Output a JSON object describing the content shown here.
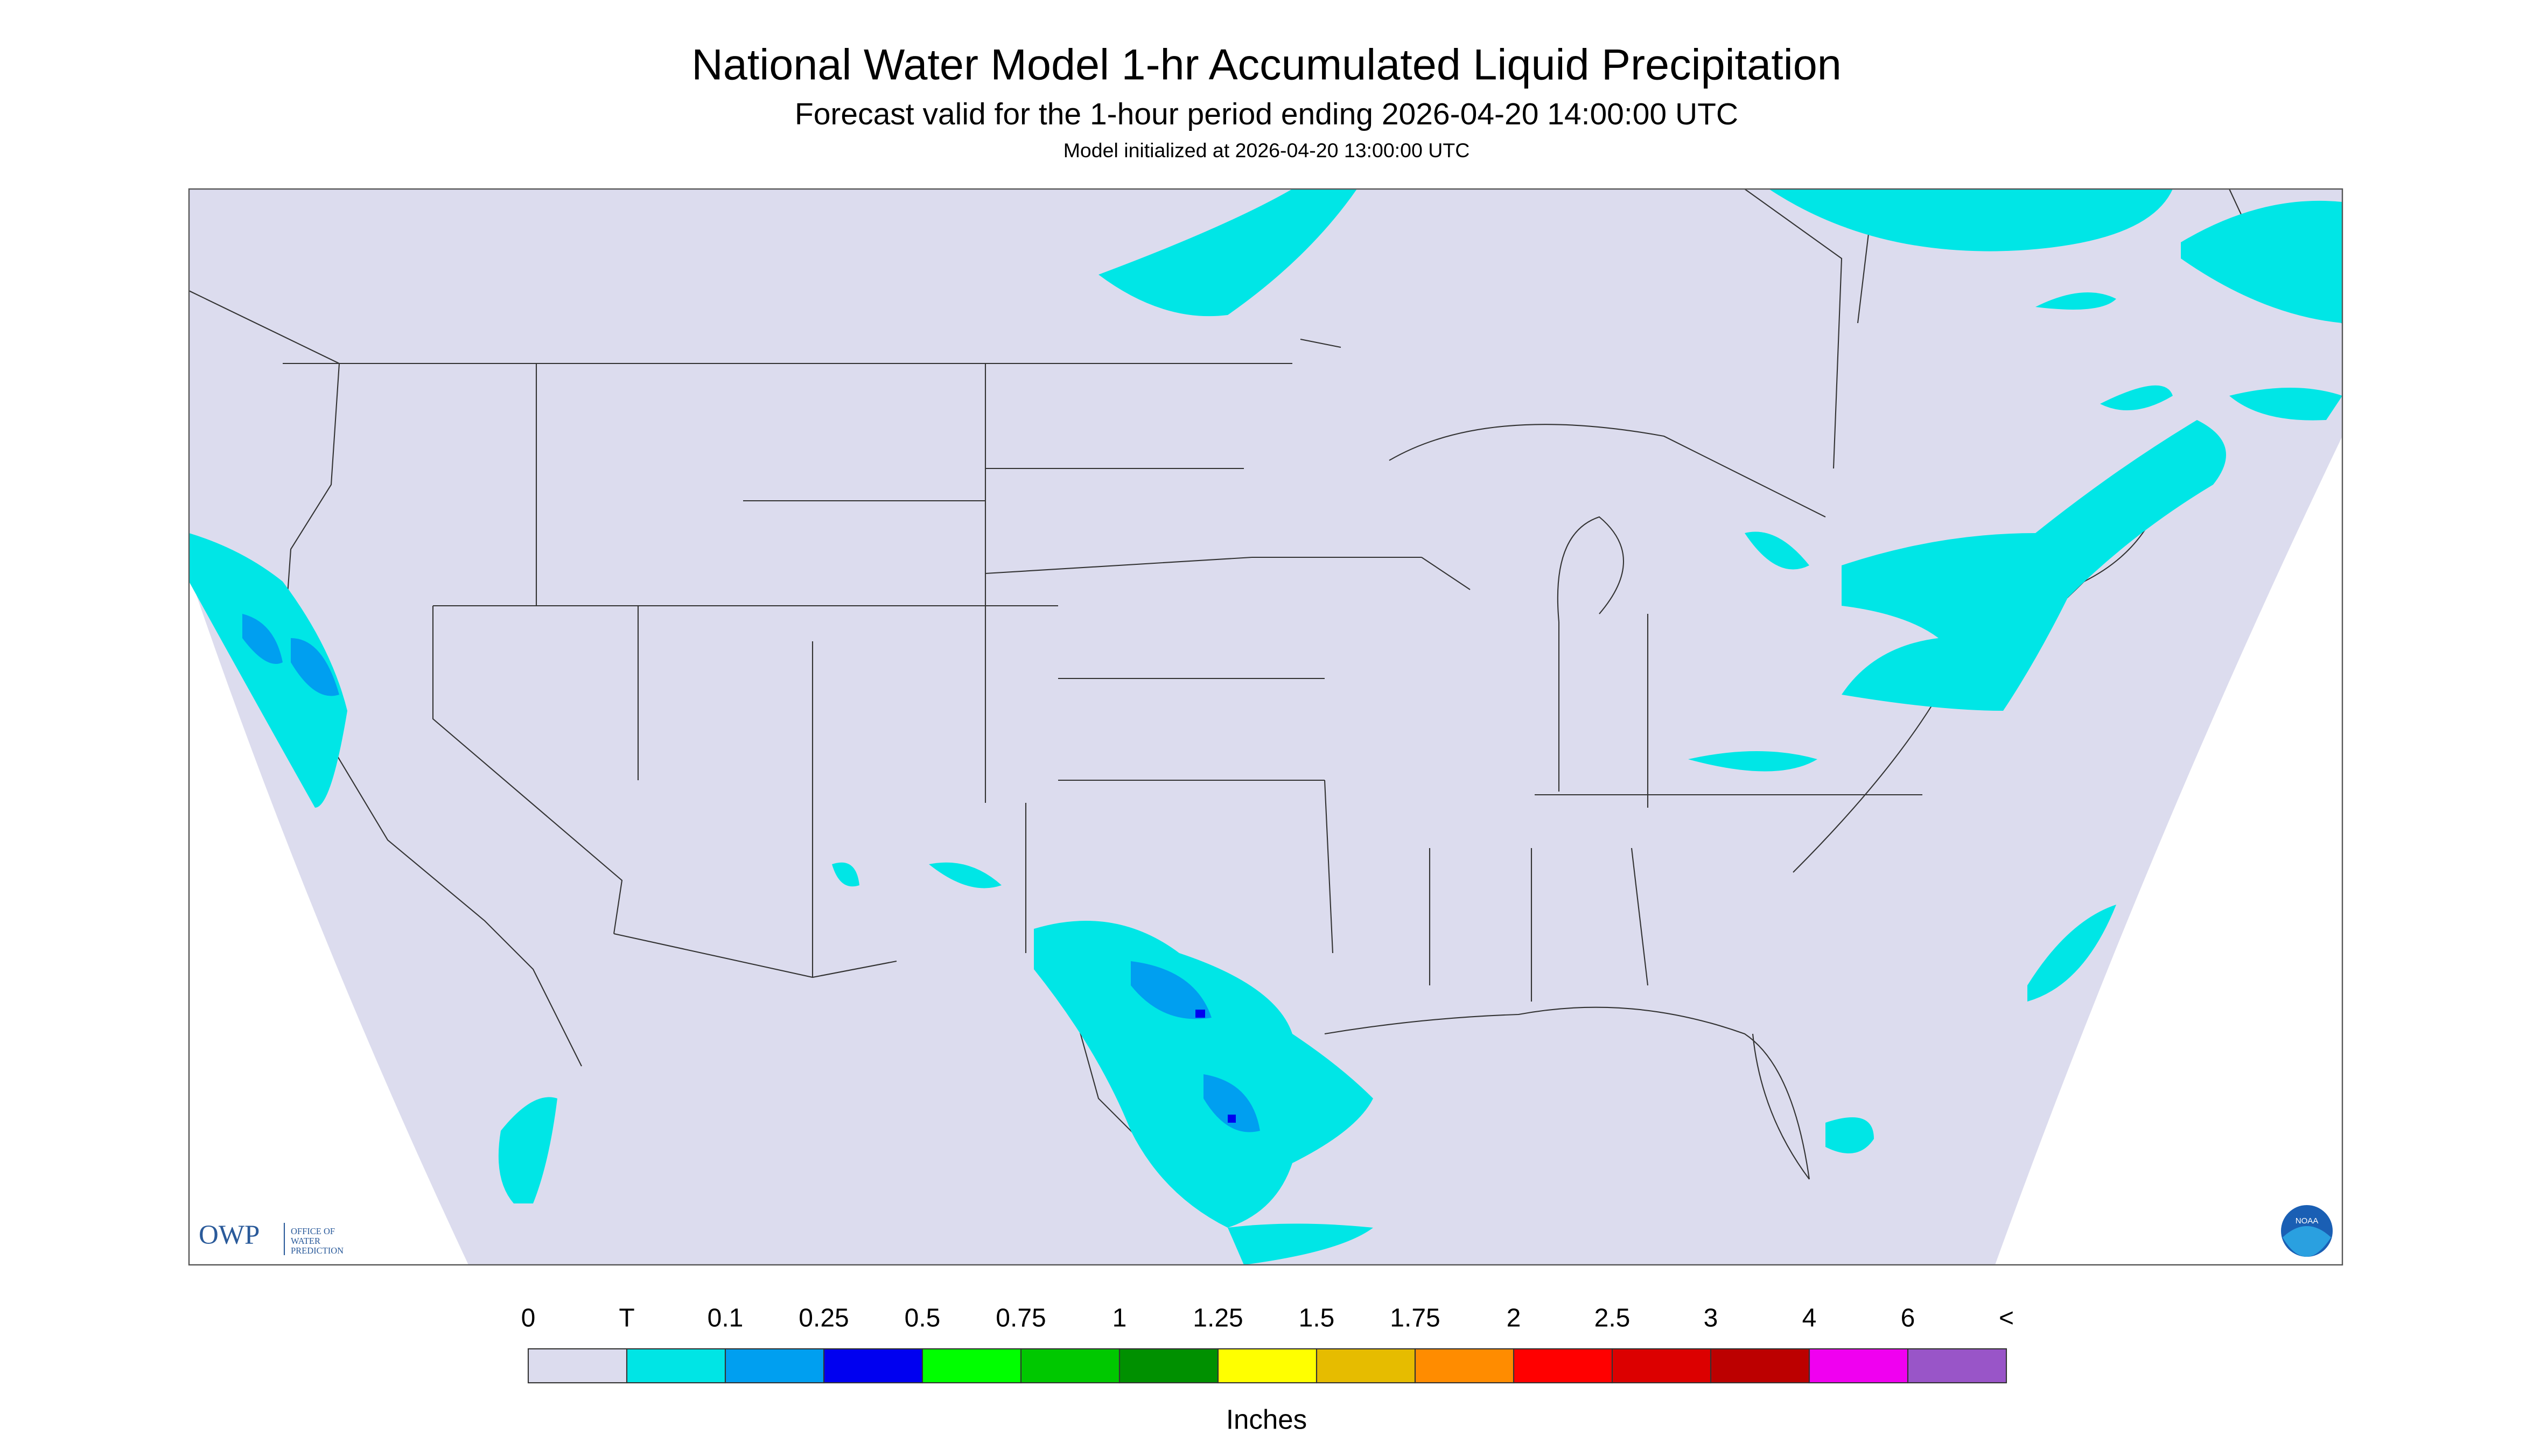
{
  "header": {
    "title": "National Water Model 1-hr Accumulated Liquid Precipitation",
    "subtitle": "Forecast valid for the 1-hour period ending 2026-04-20 14:00:00 UTC",
    "init": "Model initialized at 2026-04-20 13:00:00 UTC"
  },
  "logos": {
    "owp": "OWP",
    "owp_name": [
      "OFFICE OF",
      "WATER",
      "PREDICTION"
    ],
    "noaa": "NOAA"
  },
  "legend": {
    "labels": [
      "0",
      "T",
      "0.1",
      "0.25",
      "0.5",
      "0.75",
      "1",
      "1.25",
      "1.5",
      "1.75",
      "2",
      "2.5",
      "3",
      "4",
      "6",
      "<"
    ],
    "colors": [
      "#dcdcee",
      "#00e5e5",
      "#009ff0",
      "#0000f0",
      "#00ff00",
      "#00c800",
      "#009000",
      "#ffff00",
      "#e6bc00",
      "#ff8c00",
      "#ff0000",
      "#dc0000",
      "#bc0000",
      "#f000f0",
      "#9955c8"
    ],
    "units": "Inches"
  }
}
